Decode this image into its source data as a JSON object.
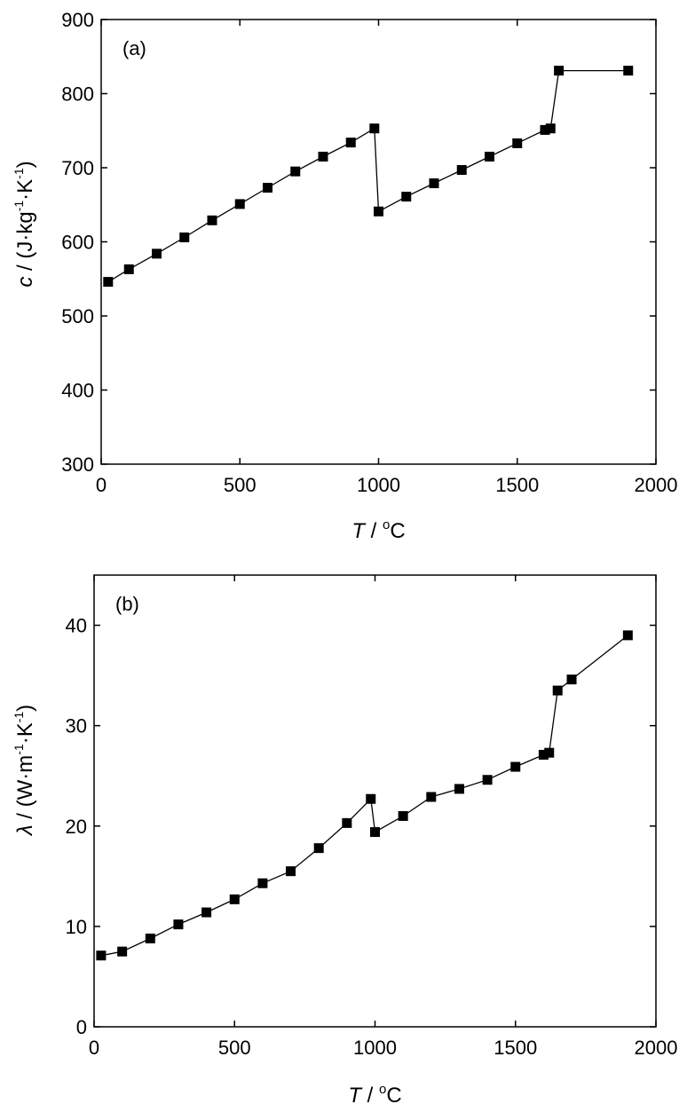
{
  "chart_data": [
    {
      "type": "line",
      "panel_label": "(a)",
      "xlabel_var": "T",
      "xlabel_unit": " / ",
      "xlabel_deg": "o",
      "xlabel_c": "C",
      "ylabel_var": "c",
      "ylabel_unit": " / (J·kg",
      "ylabel_sup1": "-1",
      "ylabel_mid": "·K",
      "ylabel_sup2": "-1",
      "ylabel_close": ")",
      "xlim": [
        0,
        2000
      ],
      "ylim": [
        300,
        900
      ],
      "xticks": [
        0,
        500,
        1000,
        1500,
        2000
      ],
      "yticks": [
        300,
        400,
        500,
        600,
        700,
        800,
        900
      ],
      "series": [
        {
          "x": [
            25,
            100,
            200,
            300,
            400,
            500,
            600,
            700,
            800,
            900,
            985,
            1000,
            1100,
            1200,
            1300,
            1400,
            1500,
            1600,
            1620,
            1650,
            1900
          ],
          "y": [
            546,
            563,
            584,
            606,
            629,
            651,
            673,
            695,
            715,
            734,
            753,
            641,
            661,
            679,
            697,
            715,
            733,
            751,
            753,
            831,
            831
          ]
        }
      ]
    },
    {
      "type": "line",
      "panel_label": "(b)",
      "xlabel_var": "T",
      "xlabel_unit": " / ",
      "xlabel_deg": "o",
      "xlabel_c": "C",
      "ylabel_var": "λ",
      "ylabel_unit": " / (W·m",
      "ylabel_sup1": "-1",
      "ylabel_mid": "·K",
      "ylabel_sup2": "-1",
      "ylabel_close": ")",
      "xlim": [
        0,
        2000
      ],
      "ylim": [
        0,
        45
      ],
      "xticks": [
        0,
        500,
        1000,
        1500,
        2000
      ],
      "yticks": [
        0,
        10,
        20,
        30,
        40
      ],
      "series": [
        {
          "x": [
            25,
            100,
            200,
            300,
            400,
            500,
            600,
            700,
            800,
            900,
            985,
            1000,
            1100,
            1200,
            1300,
            1400,
            1500,
            1600,
            1620,
            1650,
            1700,
            1900
          ],
          "y": [
            7.1,
            7.5,
            8.8,
            10.2,
            11.4,
            12.7,
            14.3,
            15.5,
            17.8,
            20.3,
            22.7,
            19.4,
            21.0,
            22.9,
            23.7,
            24.6,
            25.9,
            27.1,
            27.3,
            33.5,
            34.6,
            39.0
          ]
        }
      ]
    }
  ]
}
